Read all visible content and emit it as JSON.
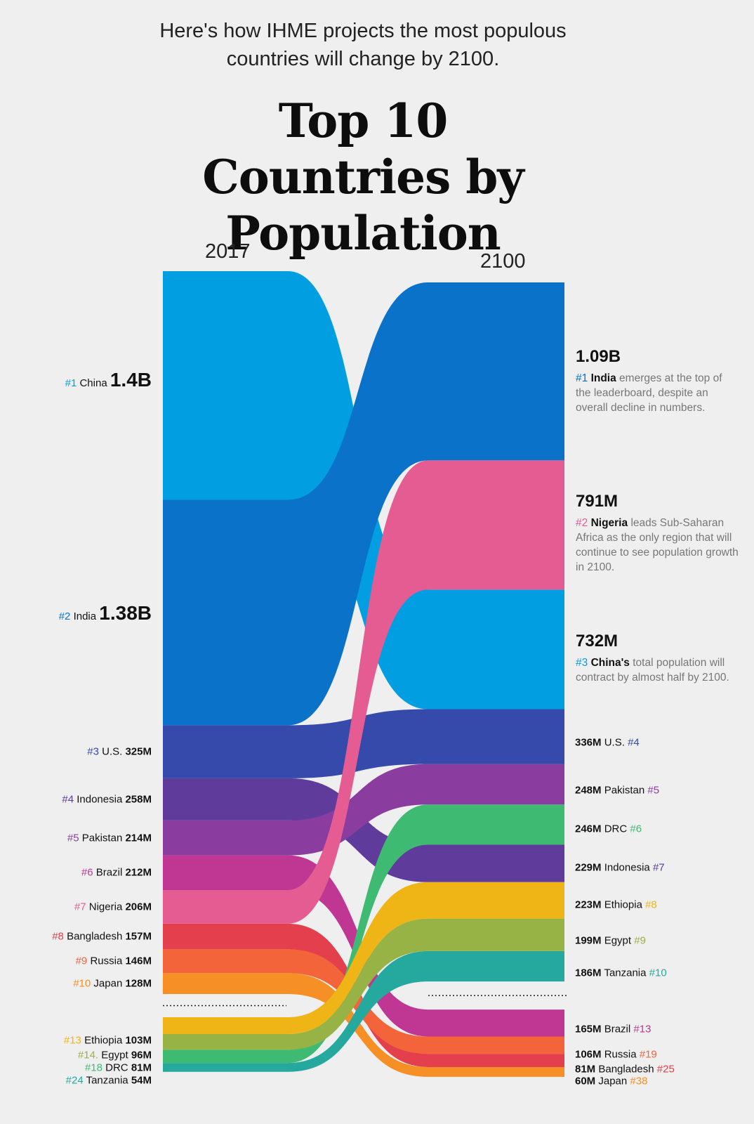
{
  "header": {
    "subtitle": "Here's how IHME projects the most populous countries will change by 2100.",
    "title": "Top 10 Countries by Population"
  },
  "chart_data": {
    "type": "sankey",
    "units": "people (millions)",
    "years": [
      "2017",
      "2100"
    ],
    "countries": [
      {
        "name": "China",
        "color": "#019fe2",
        "rank_2017": 1,
        "value_2017": 1400,
        "label_2017": "1.4B",
        "rank_2100": 3,
        "value_2100": 732,
        "label_2100": "732M"
      },
      {
        "name": "India",
        "color": "#0a72c9",
        "rank_2017": 2,
        "value_2017": 1380,
        "label_2017": "1.38B",
        "rank_2100": 1,
        "value_2100": 1090,
        "label_2100": "1.09B"
      },
      {
        "name": "U.S.",
        "color": "#354aaa",
        "rank_2017": 3,
        "value_2017": 325,
        "label_2017": "325M",
        "rank_2100": 4,
        "value_2100": 336,
        "label_2100": "336M"
      },
      {
        "name": "Indonesia",
        "color": "#5f3b9b",
        "rank_2017": 4,
        "value_2017": 258,
        "label_2017": "258M",
        "rank_2100": 7,
        "value_2100": 229,
        "label_2100": "229M"
      },
      {
        "name": "Pakistan",
        "color": "#8a3d9e",
        "rank_2017": 5,
        "value_2017": 214,
        "label_2017": "214M",
        "rank_2100": 5,
        "value_2100": 248,
        "label_2100": "248M"
      },
      {
        "name": "Brazil",
        "color": "#bf3792",
        "rank_2017": 6,
        "value_2017": 212,
        "label_2017": "212M",
        "rank_2100": 13,
        "value_2100": 165,
        "label_2100": "165M"
      },
      {
        "name": "Nigeria",
        "color": "#e55c93",
        "rank_2017": 7,
        "value_2017": 206,
        "label_2017": "206M",
        "rank_2100": 2,
        "value_2100": 791,
        "label_2100": "791M"
      },
      {
        "name": "Bangladesh",
        "color": "#e33f4c",
        "rank_2017": 8,
        "value_2017": 157,
        "label_2017": "157M",
        "rank_2100": 25,
        "value_2100": 81,
        "label_2100": "81M"
      },
      {
        "name": "Russia",
        "color": "#f3643a",
        "rank_2017": 9,
        "value_2017": 146,
        "label_2017": "146M",
        "rank_2100": 19,
        "value_2100": 106,
        "label_2100": "106M"
      },
      {
        "name": "Japan",
        "color": "#f68f26",
        "rank_2017": 10,
        "value_2017": 128,
        "label_2017": "128M",
        "rank_2100": 38,
        "value_2100": 60,
        "label_2100": "60M"
      },
      {
        "name": "Ethiopia",
        "color": "#efb416",
        "rank_2017": 13,
        "value_2017": 103,
        "label_2017": "103M",
        "rank_2100": 8,
        "value_2100": 223,
        "label_2100": "223M"
      },
      {
        "name": "Egypt",
        "color": "#98b345",
        "rank_2017": 14,
        "value_2017": 96,
        "label_2017": "96M",
        "rank_2100": 9,
        "value_2100": 199,
        "label_2100": "199M"
      },
      {
        "name": "DRC",
        "color": "#3fba73",
        "rank_2017": 18,
        "value_2017": 81,
        "label_2017": "81M",
        "rank_2100": 6,
        "value_2100": 246,
        "label_2100": "246M"
      },
      {
        "name": "Tanzania",
        "color": "#25a99e",
        "rank_2017": 24,
        "value_2017": 54,
        "label_2017": "54M",
        "rank_2100": 10,
        "value_2100": 186,
        "label_2100": "186M"
      }
    ],
    "order_2017": [
      "China",
      "India",
      "U.S.",
      "Indonesia",
      "Pakistan",
      "Brazil",
      "Nigeria",
      "Bangladesh",
      "Russia",
      "Japan",
      "Ethiopia",
      "Egypt",
      "DRC",
      "Tanzania"
    ],
    "order_2100": [
      "India",
      "Nigeria",
      "China",
      "U.S.",
      "Pakistan",
      "DRC",
      "Indonesia",
      "Ethiopia",
      "Egypt",
      "Tanzania",
      "Brazil",
      "Russia",
      "Bangladesh",
      "Japan"
    ],
    "labels_2017": [
      {
        "rank": "#1",
        "name": "China",
        "value": "1.4B"
      },
      {
        "rank": "#2",
        "name": "India",
        "value": "1.38B"
      },
      {
        "rank": "#3",
        "name": "U.S.",
        "value": "325M"
      },
      {
        "rank": "#4",
        "name": "Indonesia",
        "value": "258M"
      },
      {
        "rank": "#5",
        "name": "Pakistan",
        "value": "214M"
      },
      {
        "rank": "#6",
        "name": "Brazil",
        "value": "212M"
      },
      {
        "rank": "#7",
        "name": "Nigeria",
        "value": "206M"
      },
      {
        "rank": "#8",
        "name": "Bangladesh",
        "value": "157M"
      },
      {
        "rank": "#9",
        "name": "Russia",
        "value": "146M"
      },
      {
        "rank": "#10",
        "name": "Japan",
        "value": "128M"
      },
      {
        "rank": "#13",
        "name": "Ethiopia",
        "value": "103M"
      },
      {
        "rank": "#14.",
        "name": "Egypt",
        "value": "96M"
      },
      {
        "rank": "#18",
        "name": "DRC",
        "value": "81M"
      },
      {
        "rank": "#24",
        "name": "Tanzania",
        "value": "54M"
      }
    ],
    "labels_2100": [
      {
        "value": "336M",
        "name": "U.S.",
        "rank": "#4"
      },
      {
        "value": "248M",
        "name": "Pakistan",
        "rank": "#5"
      },
      {
        "value": "246M",
        "name": "DRC",
        "rank": "#6"
      },
      {
        "value": "229M",
        "name": "Indonesia",
        "rank": "#7"
      },
      {
        "value": "223M",
        "name": "Ethiopia",
        "rank": "#8"
      },
      {
        "value": "199M",
        "name": "Egypt",
        "rank": "#9"
      },
      {
        "value": "186M",
        "name": "Tanzania",
        "rank": "#10"
      },
      {
        "value": "165M",
        "name": "Brazil",
        "rank": "#13"
      },
      {
        "value": "106M",
        "name": "Russia",
        "rank": "#19"
      },
      {
        "value": "81M",
        "name": "Bangladesh",
        "rank": "#25"
      },
      {
        "value": "60M",
        "name": "Japan",
        "rank": "#38"
      }
    ],
    "annotations": [
      {
        "value": "1.09B",
        "rank": "#1",
        "name": "India",
        "text": "emerges at the top of the leaderboard, despite an overall decline in numbers."
      },
      {
        "value": "791M",
        "rank": "#2",
        "name": "Nigeria",
        "text": "leads Sub-Saharan Africa as the only region that will continue to see population growth in 2100."
      },
      {
        "value": "732M",
        "rank": "#3",
        "name": "China's",
        "text": "total population will contract by almost half by 2100."
      }
    ]
  }
}
